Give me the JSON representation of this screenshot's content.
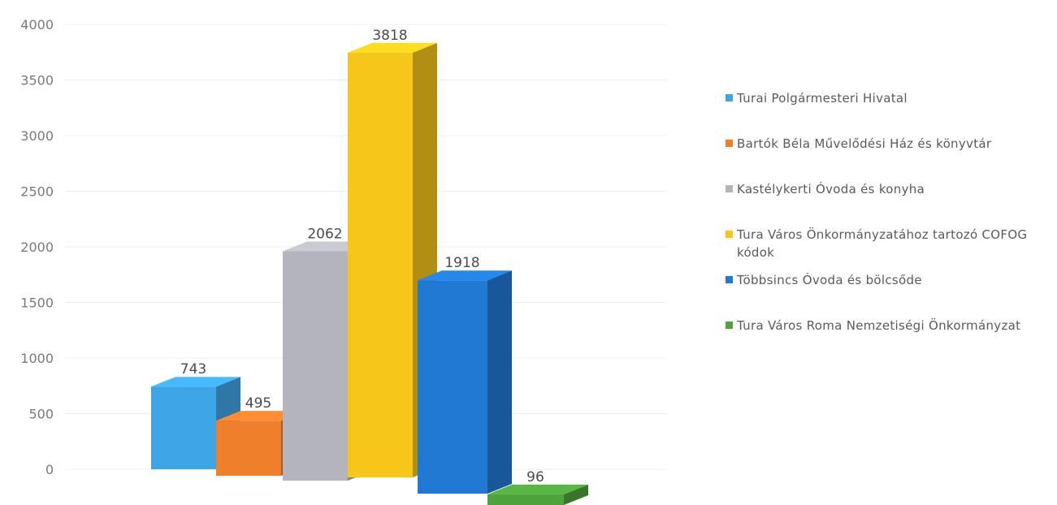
{
  "chart_data": {
    "type": "bar",
    "categories": [
      "Turai Polgármesteri Hivatal",
      "Bartók Béla Művelődési Ház és könyvtár",
      "Kastélykerti Óvoda és konyha",
      "Tura Város Önkormányzatához tartozó COFOG kódok",
      "Többsincs Óvoda és bölcsőde",
      "Tura Város Roma Nemzetiségi Önkormányzat"
    ],
    "values": [
      743,
      495,
      2062,
      3818,
      1918,
      96
    ],
    "data_labels": [
      "743",
      "495",
      "2062",
      "3818",
      "1918",
      "96"
    ],
    "y_ticks": [
      "0",
      "500",
      "1000",
      "1500",
      "2000",
      "2500",
      "3000",
      "3500",
      "4000"
    ],
    "ylim": [
      0,
      4000
    ],
    "colors": [
      "#3ea6e6",
      "#f07f2c",
      "#b4b4bc",
      "#f7c61a",
      "#2279d4",
      "#4fa33c"
    ],
    "grid": true,
    "legend_position": "right",
    "style": "3d-column"
  },
  "legend": {
    "items": [
      {
        "label": "Turai Polgármesteri Hivatal",
        "color": "#3ea6e6"
      },
      {
        "label": "Bartók Béla Művelődési Ház és könyvtár",
        "color": "#f07f2c"
      },
      {
        "label": "Kastélykerti Óvoda és konyha",
        "color": "#b4b4bc"
      },
      {
        "label": "Tura Város Önkormányzatához tartozó COFOG kódok",
        "color": "#f7c61a"
      },
      {
        "label": "Többsincs Óvoda és bölcsőde",
        "color": "#2279d4"
      },
      {
        "label": "Tura Város Roma Nemzetiségi Önkormányzat",
        "color": "#4fa33c"
      }
    ]
  }
}
